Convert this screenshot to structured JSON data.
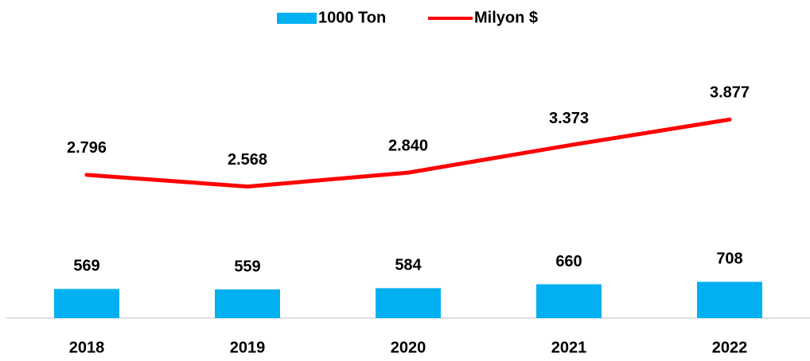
{
  "chart_data": {
    "type": "bar_line",
    "categories": [
      "2018",
      "2019",
      "2020",
      "2021",
      "2022"
    ],
    "series": [
      {
        "name": "1000 Ton",
        "type": "bar",
        "color": "#00b0f0",
        "values": [
          569,
          559,
          584,
          660,
          708
        ]
      },
      {
        "name": "Milyon $",
        "type": "line",
        "color": "#ff0000",
        "values": [
          2796,
          2568,
          2840,
          3373,
          3877
        ],
        "value_labels": [
          "2.796",
          "2.568",
          "2.840",
          "3.373",
          "3.877"
        ]
      }
    ],
    "ylim": [
      0,
      5000
    ],
    "legend": "top"
  }
}
